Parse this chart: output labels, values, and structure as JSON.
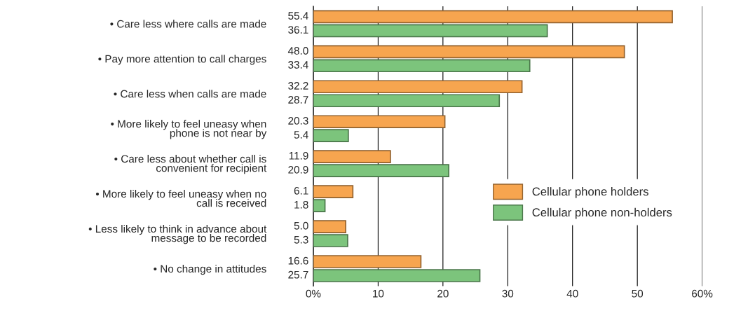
{
  "chart_data": {
    "type": "bar",
    "orientation": "horizontal",
    "categories": [
      "• Care less where calls are made",
      "• Pay more attention to call charges",
      "• Care less when calls are made",
      "• More likely to feel uneasy when\nphone is not near by",
      "• Care less about whether call is\nconvenient for recipient",
      "• More likely to feel uneasy when no\ncall is received",
      "• Less likely to think in advance about\nmessage to be recorded",
      "• No change in attitudes"
    ],
    "series": [
      {
        "name": "Cellular phone holders",
        "color": "#f7a54f",
        "values": [
          55.4,
          48.0,
          32.2,
          20.3,
          11.9,
          6.1,
          5.0,
          16.6
        ],
        "value_labels": [
          "55.4",
          "48.0",
          "32.2",
          "20.3",
          "11.9",
          "6.1",
          "5.0",
          "16.6"
        ]
      },
      {
        "name": "Cellular phone non-holders",
        "color": "#7cc47c",
        "values": [
          36.1,
          33.4,
          28.7,
          5.4,
          20.9,
          1.8,
          5.3,
          25.7
        ],
        "value_labels": [
          "36.1",
          "33.4",
          "28.7",
          "5.4",
          "20.9",
          "1.8",
          "5.3",
          "25.7"
        ]
      }
    ],
    "xlim": [
      0,
      60
    ],
    "xticks": [
      {
        "value": 0,
        "label": "0%"
      },
      10,
      20,
      30,
      40,
      50,
      {
        "value": 60,
        "label": "60%"
      }
    ],
    "grid": "x",
    "legend": "right"
  }
}
